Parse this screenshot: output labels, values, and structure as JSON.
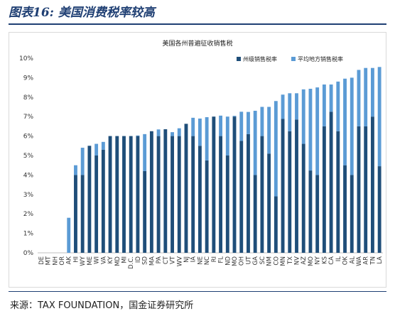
{
  "figure_title": "图表16:  美国消费税率较高",
  "source": "来源：TAX FOUNDATION，国金证券研究所",
  "colors": {
    "state": "#1f4e79",
    "local": "#5b9bd5",
    "rule": "#1f3f73"
  },
  "chart_data": {
    "type": "bar",
    "stacked": true,
    "title": "美国各州普遍征收销售税",
    "legend_position": "top-right",
    "grid": false,
    "ylim": [
      0,
      10
    ],
    "yticks": [
      "0%",
      "1%",
      "2%",
      "3%",
      "4%",
      "5%",
      "6%",
      "7%",
      "8%",
      "9%",
      "10%"
    ],
    "categories": [
      "DE",
      "MT",
      "NH",
      "OR",
      "AK",
      "HI",
      "WY",
      "ME",
      "WI",
      "VA",
      "KY",
      "MD",
      "MI",
      "D.C.",
      "ID",
      "SD",
      "MA",
      "PA",
      "CT",
      "VT",
      "WV",
      "NJ",
      "IA",
      "NE",
      "NC",
      "RI",
      "FL",
      "ND",
      "MO",
      "OH",
      "UT",
      "GA",
      "SC",
      "NM",
      "CO",
      "MN",
      "TX",
      "NV",
      "AZ",
      "MO",
      "NY",
      "KS",
      "CA",
      "IL",
      "OK",
      "AL",
      "WA",
      "AR",
      "TN",
      "LA"
    ],
    "series": [
      {
        "name": "州级销售税率",
        "values": [
          0,
          0,
          0,
          0,
          0,
          4,
          4,
          5.5,
          5,
          5.3,
          6,
          6,
          6,
          6,
          6,
          4.2,
          6.25,
          6,
          6.35,
          6,
          6,
          6.63,
          6,
          5.5,
          4.75,
          7,
          6,
          5,
          7,
          5.75,
          6.1,
          4,
          6,
          5.1,
          2.9,
          6.88,
          6.25,
          6.85,
          5.6,
          4.23,
          4,
          6.5,
          7.25,
          6.25,
          4.5,
          4,
          6.5,
          6.5,
          7,
          4.45
        ]
      },
      {
        "name": "平均地方销售税率",
        "values": [
          0,
          0,
          0,
          0,
          1.8,
          0.5,
          1.4,
          0,
          0.6,
          0.4,
          0,
          0,
          0,
          0,
          0.03,
          1.9,
          0,
          0.34,
          0,
          0.2,
          0.4,
          0,
          0.94,
          1.4,
          2.22,
          0,
          1.05,
          2,
          0.04,
          1.5,
          1.14,
          3.3,
          1.5,
          2.4,
          4.9,
          1.25,
          1.95,
          1.35,
          2.8,
          4.2,
          4.5,
          2.15,
          1.4,
          2.55,
          4.45,
          5,
          2.9,
          3,
          2.5,
          5.1
        ]
      }
    ]
  }
}
